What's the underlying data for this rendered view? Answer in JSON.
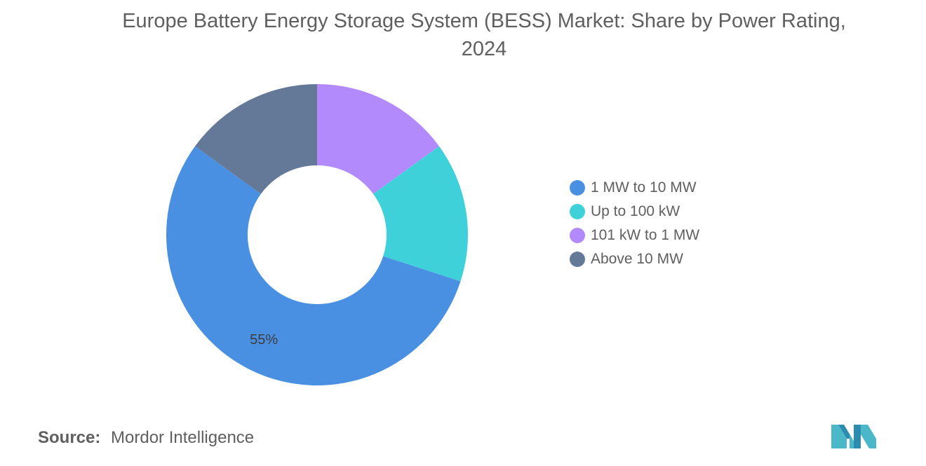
{
  "chart_data": {
    "type": "pie",
    "variant": "donut",
    "title": "Europe Battery Energy Storage System (BESS) Market: Share by Power Rating, 2024",
    "title_lines": [
      "Europe Battery Energy Storage System (BESS) Market: Share by Power Rating,",
      "2024"
    ],
    "slices": [
      {
        "label": "1 MW to 10 MW",
        "value": 55,
        "color": "#4a90e2",
        "data_label": "55%"
      },
      {
        "label": "Up to 100 kW",
        "value": 15,
        "color": "#3fd1da",
        "data_label": ""
      },
      {
        "label": "101 kW to 1 MW",
        "value": 15,
        "color": "#b28afb",
        "data_label": ""
      },
      {
        "label": "Above 10 MW",
        "value": 15,
        "color": "#647897",
        "data_label": ""
      }
    ],
    "draw_order": [
      2,
      1,
      0,
      3
    ],
    "start_angle_deg": 0,
    "legend_position": "right"
  },
  "footer": {
    "source_label": "Source:",
    "source_value": "Mordor Intelligence"
  },
  "logo": {
    "icon": "mordor-intelligence-logo-icon",
    "colors": [
      "#4bb8c9",
      "#2b8cb0"
    ]
  }
}
